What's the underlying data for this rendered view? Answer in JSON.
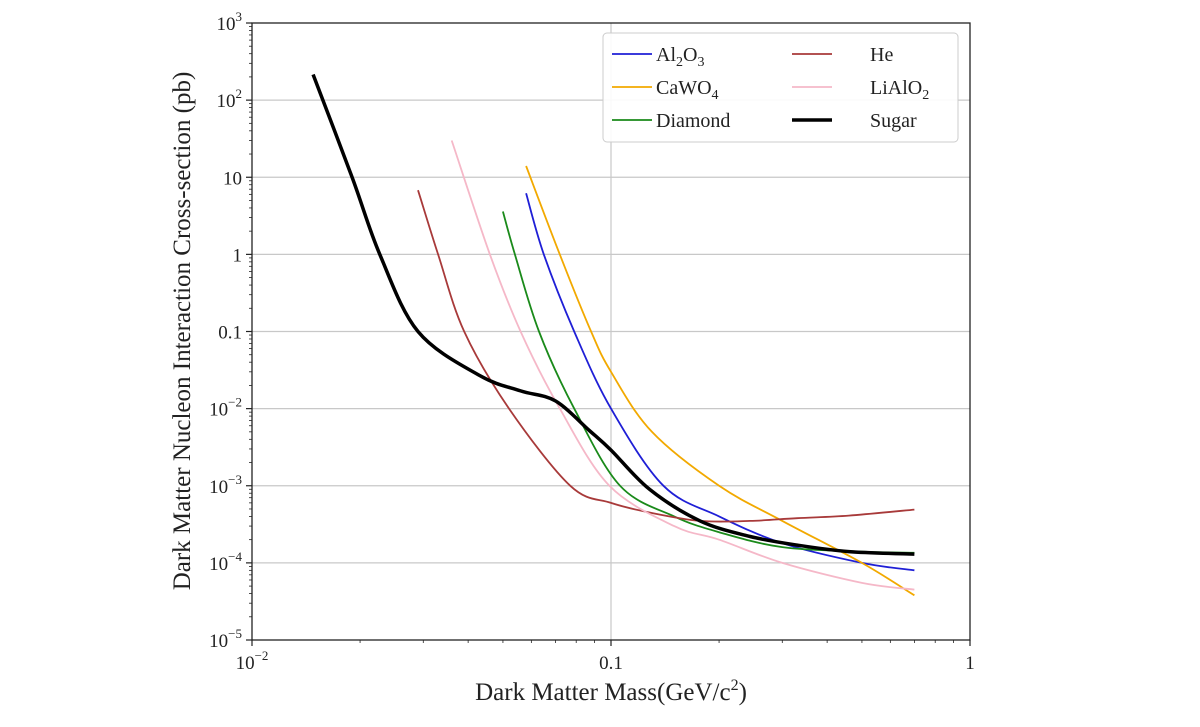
{
  "chart_data": {
    "type": "line",
    "title": "",
    "xlabel": "Dark Matter Mass(GeV/c²)",
    "xlabel_parts": {
      "main": "Dark Matter Mass(GeV/c",
      "sup": "2",
      "end": ")"
    },
    "ylabel": "Dark Matter Nucleon Interaction Cross-section (pb)",
    "xscale": "log",
    "yscale": "log",
    "xlim": [
      0.01,
      1
    ],
    "ylim": [
      1e-05,
      1000
    ],
    "grid": true,
    "legend_position": "top-right",
    "x_ticks": [
      {
        "value": 0.01,
        "base": "10",
        "exp": "−2",
        "text": ""
      },
      {
        "value": 0.1,
        "base": "",
        "exp": "",
        "text": "0.1"
      },
      {
        "value": 1,
        "base": "",
        "exp": "",
        "text": "1"
      }
    ],
    "y_ticks": [
      {
        "value": 1000,
        "base": "10",
        "exp": "3",
        "text": ""
      },
      {
        "value": 100,
        "base": "10",
        "exp": "2",
        "text": ""
      },
      {
        "value": 10,
        "base": "",
        "exp": "",
        "text": "10"
      },
      {
        "value": 1,
        "base": "",
        "exp": "",
        "text": "1"
      },
      {
        "value": 0.1,
        "base": "",
        "exp": "",
        "text": "0.1"
      },
      {
        "value": 0.01,
        "base": "10",
        "exp": "−2",
        "text": ""
      },
      {
        "value": 0.001,
        "base": "10",
        "exp": "−3",
        "text": ""
      },
      {
        "value": 0.0001,
        "base": "10",
        "exp": "−4",
        "text": ""
      },
      {
        "value": 1e-05,
        "base": "10",
        "exp": "−5",
        "text": ""
      }
    ],
    "series": [
      {
        "name": "Al2O3",
        "label_parts": [
          [
            "Al",
            ""
          ],
          [
            "2",
            "sub"
          ],
          [
            "O",
            ""
          ],
          [
            "3",
            "sub"
          ]
        ],
        "color": "#1f1fd6",
        "width": 1.8,
        "x": [
          0.058,
          0.065,
          0.079,
          0.1,
          0.14,
          0.2,
          0.3,
          0.5,
          0.7
        ],
        "y": [
          6.2,
          1,
          0.1,
          0.01,
          0.001,
          0.0004,
          0.00018,
          0.0001,
          8e-05
        ]
      },
      {
        "name": "CaWO4",
        "label_parts": [
          [
            "CaWO",
            ""
          ],
          [
            "4",
            "sub"
          ]
        ],
        "color": "#f2a900",
        "width": 1.8,
        "x": [
          0.058,
          0.072,
          0.088,
          0.1,
          0.13,
          0.2,
          0.3,
          0.5,
          0.7
        ],
        "y": [
          14,
          1,
          0.1,
          0.03,
          0.005,
          0.001,
          0.00035,
          0.0001,
          3.8e-05
        ]
      },
      {
        "name": "Diamond",
        "label_parts": [
          [
            "Diamond",
            ""
          ]
        ],
        "color": "#1a8a1a",
        "width": 1.8,
        "x": [
          0.05,
          0.054,
          0.063,
          0.079,
          0.106,
          0.15,
          0.2,
          0.3,
          0.5,
          0.7
        ],
        "y": [
          3.6,
          1,
          0.1,
          0.01,
          0.001,
          0.0004,
          0.00025,
          0.00016,
          0.00014,
          0.000135
        ]
      },
      {
        "name": "He",
        "label_parts": [
          [
            "He",
            ""
          ]
        ],
        "color": "#a83a3a",
        "width": 1.8,
        "x": [
          0.029,
          0.033,
          0.039,
          0.052,
          0.077,
          0.1,
          0.128,
          0.177,
          0.244,
          0.33,
          0.46,
          0.7
        ],
        "y": [
          6.8,
          1,
          0.1,
          0.01,
          0.001,
          0.0006,
          0.00045,
          0.00035,
          0.00035,
          0.00038,
          0.00041,
          0.00049
        ]
      },
      {
        "name": "LiAlO2",
        "label_parts": [
          [
            "LiAlO",
            ""
          ],
          [
            "2",
            "sub"
          ]
        ],
        "color": "#f5b8c8",
        "width": 1.8,
        "x": [
          0.036,
          0.046,
          0.056,
          0.072,
          0.099,
          0.15,
          0.2,
          0.3,
          0.5,
          0.7
        ],
        "y": [
          30,
          1,
          0.1,
          0.01,
          0.001,
          0.0003,
          0.0002,
          0.0001,
          5.5e-05,
          4.5e-05
        ]
      },
      {
        "name": "Sugar",
        "label_parts": [
          [
            "Sugar",
            ""
          ]
        ],
        "color": "#000000",
        "width": 3.5,
        "x": [
          0.0148,
          0.019,
          0.0227,
          0.029,
          0.043,
          0.056,
          0.07,
          0.087,
          0.1,
          0.128,
          0.177,
          0.244,
          0.33,
          0.46,
          0.7
        ],
        "y": [
          215,
          10,
          1,
          0.1,
          0.027,
          0.017,
          0.0126,
          0.0052,
          0.0029,
          0.0009,
          0.00035,
          0.00022,
          0.00017,
          0.00014,
          0.00013
        ]
      }
    ]
  }
}
